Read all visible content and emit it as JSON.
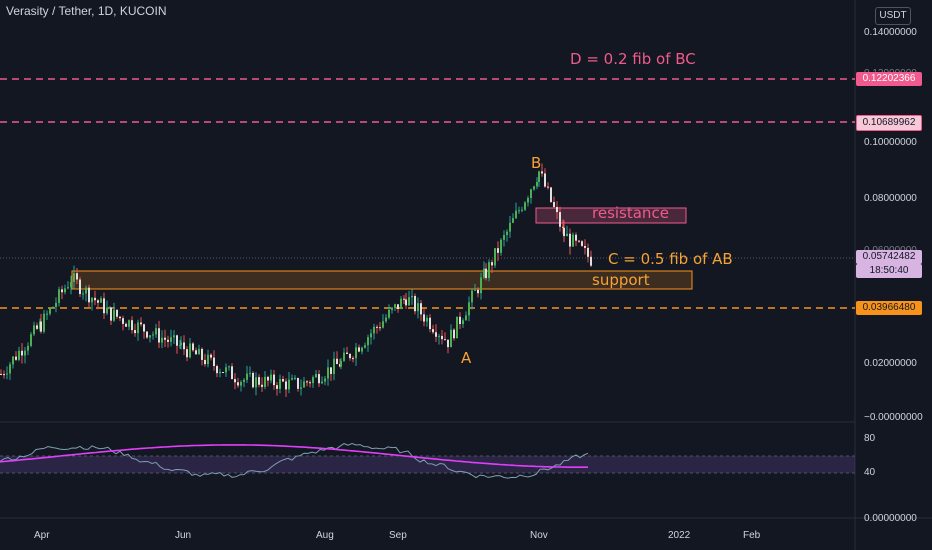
{
  "header": {
    "title": "Verasity / Tether, 1D, KUCOIN",
    "currency": "USDT"
  },
  "price_axis": {
    "labels": [
      "0.14000000",
      "0.12000000",
      "0.10000000",
      "0.08000000",
      "0.06000000",
      "0.02000000",
      "−0.00000000"
    ]
  },
  "badges": {
    "d_level": "0.12202366",
    "resistance_level": "0.10689962",
    "current_price": "0.05742482",
    "countdown": "18:50:40",
    "support_level": "0.03966480"
  },
  "rsi_axis": {
    "labels": [
      "80",
      "40",
      "0.00000000"
    ]
  },
  "time_axis": {
    "labels": [
      "Apr",
      "Jun",
      "Aug",
      "Sep",
      "Nov",
      "2022",
      "Feb"
    ]
  },
  "annotations": {
    "d_text": "D = 0.2 fib of BC",
    "b": "B",
    "resistance": "resistance",
    "c_text": "C = 0.5 fib of AB",
    "support": "support",
    "a": "A"
  },
  "colors": {
    "background": "#131722",
    "up": "#26a69a",
    "down": "#ef5350",
    "pink": "#f05a8c",
    "orange": "#f7931a",
    "rsi_ma": "#e040fb",
    "rsi_line": "#7e9fb3"
  },
  "chart_data": {
    "type": "candlestick",
    "title": "Verasity / Tether, 1D, KUCOIN",
    "ylim": [
      0,
      0.14
    ],
    "x_range": [
      "Mar",
      "Feb"
    ],
    "approx_close_series": [
      {
        "x": "Mar",
        "y": 0.015
      },
      {
        "x": "Apr",
        "y": 0.033
      },
      {
        "x": "Apr-mid",
        "y": 0.05
      },
      {
        "x": "May",
        "y": 0.037
      },
      {
        "x": "Jun",
        "y": 0.025
      },
      {
        "x": "Jul",
        "y": 0.013
      },
      {
        "x": "Aug",
        "y": 0.011
      },
      {
        "x": "Aug-mid",
        "y": 0.019
      },
      {
        "x": "Sep",
        "y": 0.043
      },
      {
        "x": "Oct-A",
        "y": 0.027
      },
      {
        "x": "Oct",
        "y": 0.052
      },
      {
        "x": "Nov-B",
        "y": 0.089
      },
      {
        "x": "Nov",
        "y": 0.066
      },
      {
        "x": "Nov-end",
        "y": 0.057
      }
    ],
    "levels": [
      {
        "value": 0.12202366,
        "style": "dashed",
        "color": "pink"
      },
      {
        "value": 0.10689962,
        "style": "dashed",
        "color": "pink"
      },
      {
        "value": 0.0396648,
        "style": "dashed",
        "color": "orange"
      }
    ],
    "rsi": {
      "ylim": [
        0,
        100
      ],
      "band": [
        40,
        60
      ],
      "ticks": [
        80,
        40
      ]
    }
  }
}
